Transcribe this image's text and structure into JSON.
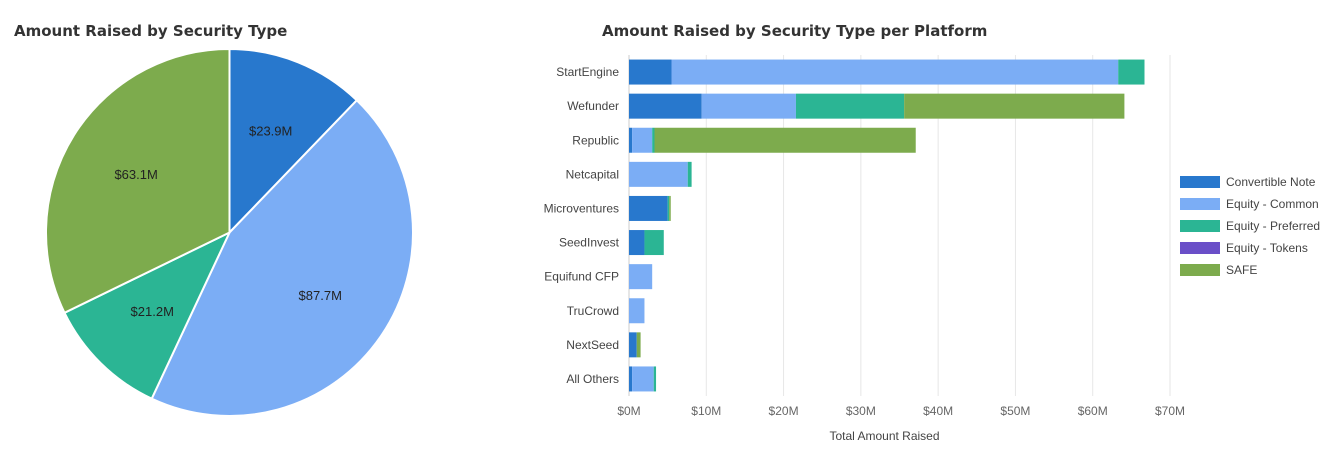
{
  "pie": {
    "title": "Amount Raised by Security Type"
  },
  "bar": {
    "title": "Amount Raised by Security Type per Platform"
  },
  "colors": {
    "Convertible Note": "#2878cd",
    "Equity - Common": "#7badf5",
    "Equity - Preferred": "#2bb594",
    "Equity - Tokens": "#6a4fc8",
    "SAFE": "#7dab4d"
  },
  "chart_data": [
    {
      "type": "pie",
      "title": "Amount Raised by Security Type",
      "slices": [
        {
          "name": "Convertible Note",
          "value": 23.9,
          "label": "$23.9M"
        },
        {
          "name": "Equity - Common",
          "value": 87.7,
          "label": "$87.7M"
        },
        {
          "name": "Equity - Preferred",
          "value": 21.2,
          "label": "$21.2M"
        },
        {
          "name": "Equity - Tokens",
          "value": 0.0,
          "label": ""
        },
        {
          "name": "SAFE",
          "value": 63.1,
          "label": "$63.1M"
        }
      ]
    },
    {
      "type": "bar",
      "orientation": "horizontal",
      "stacked": true,
      "title": "Amount Raised by Security Type per Platform",
      "xlabel": "Total Amount Raised",
      "ylabel": "",
      "xlim": [
        0,
        70
      ],
      "xticks": [
        "$0M",
        "$10M",
        "$20M",
        "$30M",
        "$40M",
        "$50M",
        "$60M",
        "$70M"
      ],
      "categories": [
        "StartEngine",
        "Wefunder",
        "Republic",
        "Netcapital",
        "Microventures",
        "SeedInvest",
        "Equifund CFP",
        "TruCrowd",
        "NextSeed",
        "All Others"
      ],
      "series": [
        {
          "name": "Convertible Note",
          "values": [
            5.5,
            9.4,
            0.4,
            0.0,
            5.0,
            2.0,
            0.0,
            0.0,
            1.0,
            0.4
          ]
        },
        {
          "name": "Equity - Common",
          "values": [
            57.8,
            12.2,
            2.6,
            7.6,
            0.0,
            0.0,
            3.0,
            2.0,
            0.0,
            2.8
          ]
        },
        {
          "name": "Equity - Preferred",
          "values": [
            3.4,
            14.0,
            0.3,
            0.5,
            0.2,
            2.5,
            0.0,
            0.0,
            0.0,
            0.3
          ]
        },
        {
          "name": "Equity - Tokens",
          "values": [
            0,
            0,
            0,
            0,
            0,
            0,
            0,
            0,
            0,
            0
          ]
        },
        {
          "name": "SAFE",
          "values": [
            0.0,
            28.5,
            33.8,
            0.0,
            0.2,
            0.0,
            0.0,
            0.0,
            0.5,
            0.0
          ]
        }
      ],
      "grid": true,
      "legend": "right"
    }
  ]
}
